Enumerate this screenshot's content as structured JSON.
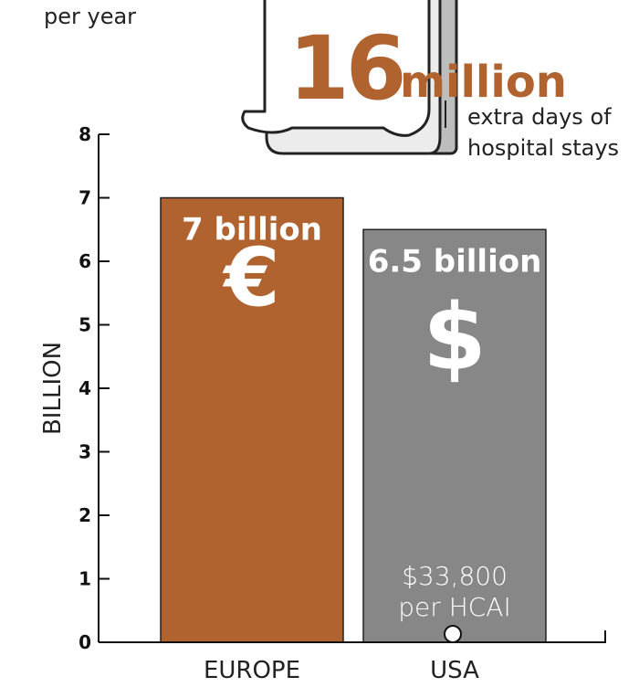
{
  "chart_data": {
    "type": "bar",
    "categories": [
      "EUROPE",
      "USA"
    ],
    "values": [
      7,
      6.5
    ],
    "value_labels": [
      "7 billion",
      "6.5 billion"
    ],
    "currency_symbols": [
      "€",
      "$"
    ],
    "colors": [
      "#b0622f",
      "#878787"
    ],
    "y_label": "BILLION",
    "ylim": [
      0,
      8
    ],
    "yticks": [
      0,
      1,
      2,
      3,
      4,
      5,
      6,
      7,
      8
    ],
    "annotations": {
      "per_year": "per year",
      "big_number": "16",
      "big_unit": "million",
      "days_line1": "extra days of",
      "days_line2": "hospital stays",
      "cost_line1": "$33,800",
      "cost_line2": "per HCAI"
    }
  }
}
